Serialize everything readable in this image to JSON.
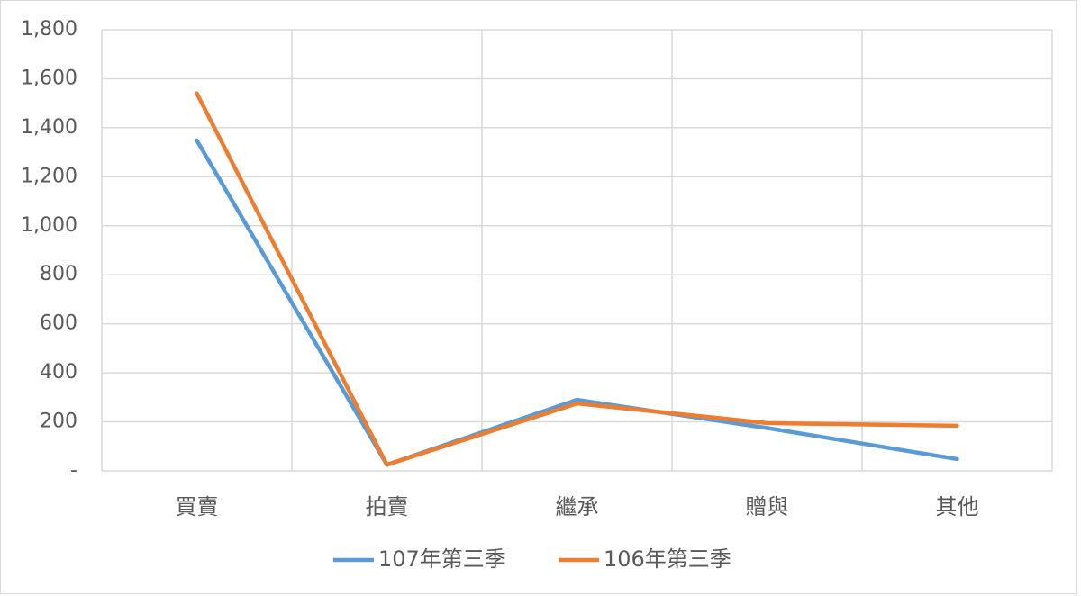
{
  "chart_data": {
    "type": "line",
    "categories": [
      "買賣",
      "拍賣",
      "繼承",
      "贈與",
      "其他"
    ],
    "series": [
      {
        "name": "107年第三季",
        "color": "#5b9bd5",
        "values": [
          1348,
          25,
          290,
          175,
          48
        ]
      },
      {
        "name": "106年第三季",
        "color": "#ed7d31",
        "values": [
          1540,
          25,
          275,
          195,
          184
        ]
      }
    ],
    "ylim": [
      0,
      1800
    ],
    "yticks": [
      {
        "value": 0,
        "label": "-"
      },
      200,
      400,
      600,
      800,
      {
        "value": 1000,
        "label": "1,000"
      },
      {
        "value": 1200,
        "label": "1,200"
      },
      {
        "value": 1400,
        "label": "1,400"
      },
      {
        "value": 1600,
        "label": "1,600"
      },
      {
        "value": 1800,
        "label": "1,800"
      }
    ],
    "grid": true,
    "legend": "bottom"
  }
}
